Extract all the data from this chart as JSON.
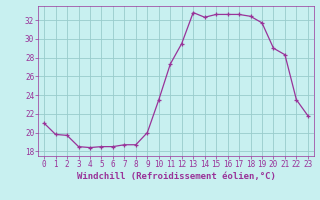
{
  "x": [
    0,
    1,
    2,
    3,
    4,
    5,
    6,
    7,
    8,
    9,
    10,
    11,
    12,
    13,
    14,
    15,
    16,
    17,
    18,
    19,
    20,
    21,
    22,
    23
  ],
  "y": [
    21.0,
    19.8,
    19.7,
    18.5,
    18.4,
    18.5,
    18.5,
    18.7,
    18.7,
    20.0,
    23.5,
    27.3,
    29.5,
    32.8,
    32.3,
    32.6,
    32.6,
    32.6,
    32.4,
    31.7,
    29.0,
    28.3,
    23.5,
    21.8
  ],
  "line_color": "#993399",
  "marker_color": "#993399",
  "bg_color": "#c8f0f0",
  "grid_color": "#99cccc",
  "xlabel": "Windchill (Refroidissement éolien,°C)",
  "xlim": [
    -0.5,
    23.5
  ],
  "ylim": [
    17.5,
    33.5
  ],
  "yticks": [
    18,
    20,
    22,
    24,
    26,
    28,
    30,
    32
  ],
  "xticks": [
    0,
    1,
    2,
    3,
    4,
    5,
    6,
    7,
    8,
    9,
    10,
    11,
    12,
    13,
    14,
    15,
    16,
    17,
    18,
    19,
    20,
    21,
    22,
    23
  ],
  "axis_fontsize": 6.5,
  "tick_fontsize": 5.5
}
